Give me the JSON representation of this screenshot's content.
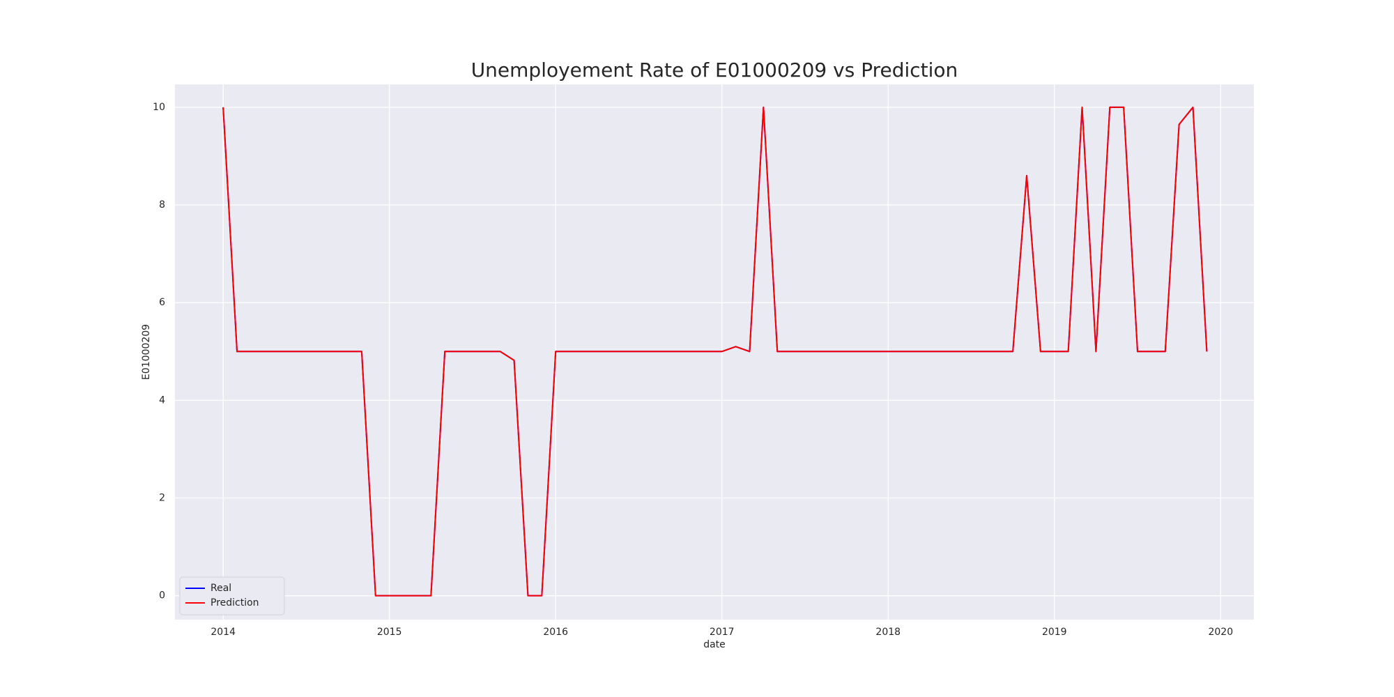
{
  "chart_data": {
    "type": "line",
    "title": "Unemployement Rate of E01000209 vs Prediction",
    "x_label": "date",
    "y_label": "E01000209",
    "x": [
      "2014-01",
      "2014-02",
      "2014-03",
      "2014-04",
      "2014-05",
      "2014-06",
      "2014-07",
      "2014-08",
      "2014-09",
      "2014-10",
      "2014-11",
      "2014-12",
      "2015-01",
      "2015-02",
      "2015-03",
      "2015-04",
      "2015-05",
      "2015-06",
      "2015-07",
      "2015-08",
      "2015-09",
      "2015-10",
      "2015-11",
      "2015-12",
      "2016-01",
      "2016-02",
      "2016-03",
      "2016-04",
      "2016-05",
      "2016-06",
      "2016-07",
      "2016-08",
      "2016-09",
      "2016-10",
      "2016-11",
      "2016-12",
      "2017-01",
      "2017-02",
      "2017-03",
      "2017-04",
      "2017-05",
      "2017-06",
      "2017-07",
      "2017-08",
      "2017-09",
      "2017-10",
      "2017-11",
      "2017-12",
      "2018-01",
      "2018-02",
      "2018-03",
      "2018-04",
      "2018-05",
      "2018-06",
      "2018-07",
      "2018-08",
      "2018-09",
      "2018-10",
      "2018-11",
      "2018-12",
      "2019-01",
      "2019-02",
      "2019-03",
      "2019-04",
      "2019-05",
      "2019-06",
      "2019-07",
      "2019-08",
      "2019-09",
      "2019-10",
      "2019-11",
      "2019-12"
    ],
    "series": [
      {
        "name": "Real",
        "color": "#0000ff",
        "values": [
          10,
          5,
          5,
          5,
          5,
          5,
          5,
          5,
          5,
          5,
          5,
          0,
          0,
          0,
          0,
          0,
          5,
          5,
          5,
          5,
          5,
          4.82,
          0,
          0,
          5,
          5,
          5,
          5,
          5,
          5,
          5,
          5,
          5,
          5,
          5,
          5,
          5,
          5.1,
          5,
          10,
          5,
          5,
          5,
          5,
          5,
          5,
          5,
          5,
          5,
          5,
          5,
          5,
          5,
          5,
          5,
          5,
          5,
          5,
          8.6,
          5,
          5,
          5,
          10,
          5,
          10,
          10,
          5,
          5,
          5,
          9.65,
          10,
          5
        ]
      },
      {
        "name": "Prediction",
        "color": "#ff0000",
        "values": [
          10,
          5,
          5,
          5,
          5,
          5,
          5,
          5,
          5,
          5,
          5,
          0,
          0,
          0,
          0,
          0,
          5,
          5,
          5,
          5,
          5,
          4.82,
          0,
          0,
          5,
          5,
          5,
          5,
          5,
          5,
          5,
          5,
          5,
          5,
          5,
          5,
          5,
          5.1,
          5,
          10,
          5,
          5,
          5,
          5,
          5,
          5,
          5,
          5,
          5,
          5,
          5,
          5,
          5,
          5,
          5,
          5,
          5,
          5,
          8.6,
          5,
          5,
          5,
          10,
          5,
          10,
          10,
          5,
          5,
          5,
          9.65,
          10,
          5
        ]
      }
    ],
    "xlim": [
      2013.71,
      2020.2
    ],
    "xticks": [
      2014,
      2015,
      2016,
      2017,
      2018,
      2019,
      2020
    ],
    "ylim": [
      -0.49,
      10.47
    ],
    "yticks": [
      0,
      2,
      4,
      6,
      8,
      10
    ],
    "grid": true,
    "legend": "lower left"
  }
}
